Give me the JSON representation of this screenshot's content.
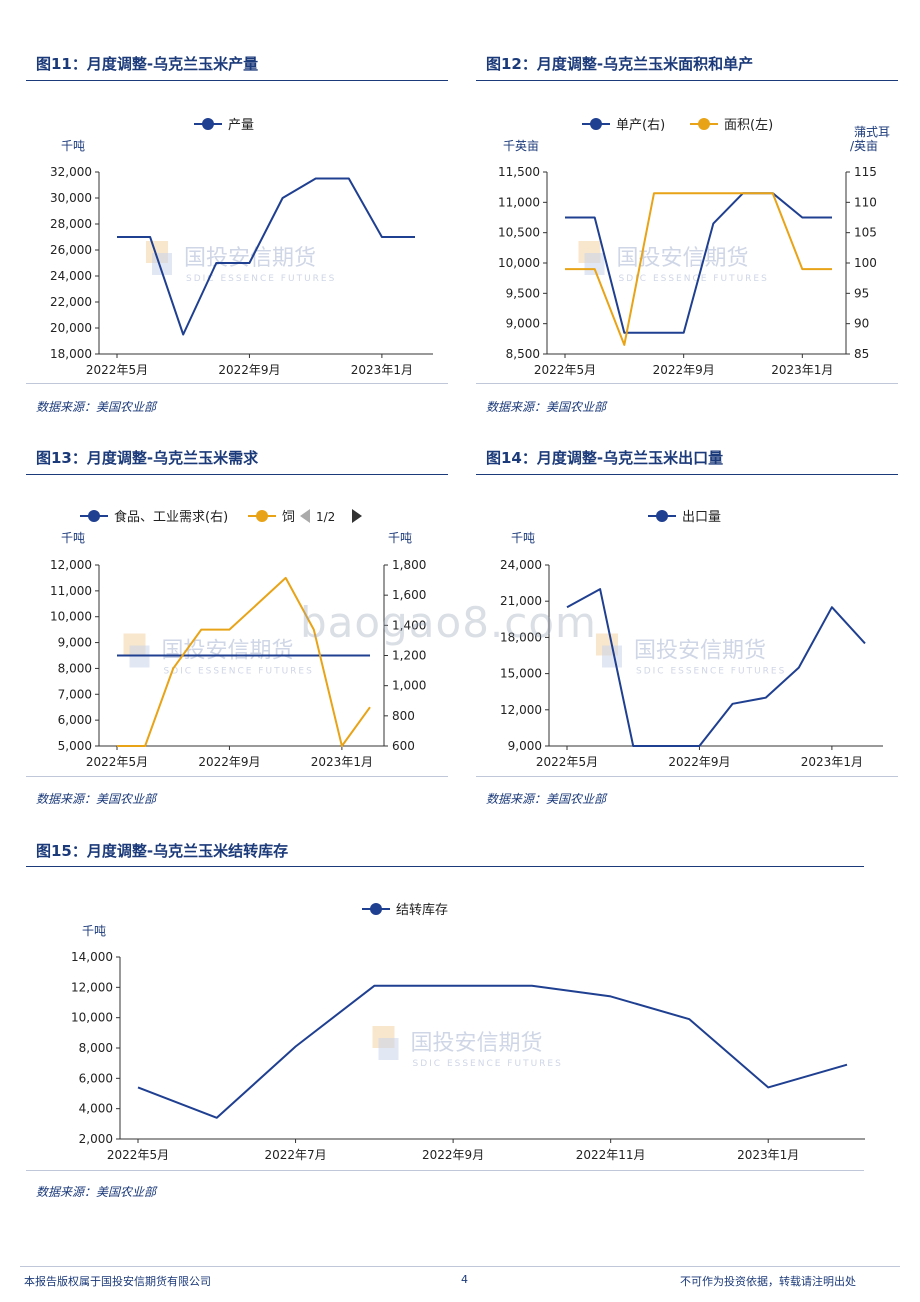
{
  "figures": [
    {
      "title": "图11：月度调整-乌克兰玉米产量",
      "source": "数据来源：美国农业部",
      "chart_data": {
        "type": "line",
        "x": [
          "2022年5月",
          "2022年6月",
          "2022年7月",
          "2022年8月",
          "2022年9月",
          "2022年10月",
          "2022年11月",
          "2022年12月",
          "2023年1月",
          "2023年2月"
        ],
        "x_tick_labels": [
          "2022年5月",
          "2022年9月",
          "2023年1月"
        ],
        "left_unit": "千吨",
        "left_ylim": [
          18000,
          32000
        ],
        "left_ticks": [
          "18,000",
          "20,000",
          "22,000",
          "24,000",
          "26,000",
          "28,000",
          "30,000",
          "32,000"
        ],
        "legend_entries": [
          "产量"
        ],
        "series": [
          {
            "name": "产量",
            "axis": "left",
            "color": "#1f3f91",
            "values": [
              27000,
              27000,
              19500,
              25000,
              25000,
              30000,
              31500,
              31500,
              27000,
              27000
            ]
          }
        ]
      }
    },
    {
      "title": "图12：月度调整-乌克兰玉米面积和单产",
      "source": "数据来源：美国农业部",
      "chart_data": {
        "type": "line",
        "x": [
          "2022年5月",
          "2022年6月",
          "2022年7月",
          "2022年8月",
          "2022年9月",
          "2022年10月",
          "2022年11月",
          "2022年12月",
          "2023年1月",
          "2023年2月"
        ],
        "x_tick_labels": [
          "2022年5月",
          "2022年9月",
          "2023年1月"
        ],
        "left_unit": "千英亩",
        "right_unit_1": "蒲式耳",
        "right_unit_2": "/英亩",
        "left_ylim": [
          8500,
          11500
        ],
        "left_ticks": [
          "8,500",
          "9,000",
          "9,500",
          "10,000",
          "10,500",
          "11,000",
          "11,500"
        ],
        "right_ylim": [
          85,
          115
        ],
        "right_ticks": [
          "85",
          "90",
          "95",
          "100",
          "105",
          "110",
          "115"
        ],
        "legend_entries": [
          "单产(右)",
          "面积(左)"
        ],
        "series": [
          {
            "name": "单产(右)",
            "axis": "right",
            "color": "#1f3f91",
            "values": [
              107.5,
              107.5,
              88.5,
              88.5,
              88.5,
              106.5,
              111.5,
              111.5,
              107.5,
              107.5
            ]
          },
          {
            "name": "面积(左)",
            "axis": "left",
            "color": "#e8a317",
            "values": [
              9900,
              9900,
              8650,
              11150,
              11150,
              11150,
              11150,
              11150,
              9900,
              9900
            ]
          }
        ]
      }
    },
    {
      "title": "图13：月度调整-乌克兰玉米需求",
      "source": "数据来源：美国农业部",
      "chart_data": {
        "type": "line",
        "x": [
          "2022年5月",
          "2022年6月",
          "2022年7月",
          "2022年8月",
          "2022年9月",
          "2022年10月",
          "2022年11月",
          "2022年12月",
          "2023年1月",
          "2023年2月"
        ],
        "x_tick_labels": [
          "2022年5月",
          "2022年9月",
          "2023年1月"
        ],
        "left_unit": "千吨",
        "right_unit": "千吨",
        "left_ylim": [
          5000,
          12000
        ],
        "left_ticks": [
          "5,000",
          "6,000",
          "7,000",
          "8,000",
          "9,000",
          "10,000",
          "11,000",
          "12,000"
        ],
        "right_ylim": [
          600,
          1800
        ],
        "right_ticks": [
          "600",
          "800",
          "1,000",
          "1,200",
          "1,400",
          "1,600",
          "1,800"
        ],
        "legend_entries": [
          "食品、工业需求(右)",
          "饲"
        ],
        "legend_pager": "1/2",
        "series": [
          {
            "name": "食品、工业需求(右)",
            "axis": "right",
            "color": "#1f3f91",
            "values": [
              1200,
              1200,
              1200,
              1200,
              1200,
              1200,
              1200,
              1200,
              1200,
              1200
            ]
          },
          {
            "name": "饲",
            "axis": "left",
            "color": "#e8a317",
            "values": [
              5000,
              5000,
              8000,
              9500,
              9500,
              10500,
              11500,
              9500,
              5000,
              6500
            ]
          }
        ]
      }
    },
    {
      "title": "图14：月度调整-乌克兰玉米出口量",
      "source": "数据来源：美国农业部",
      "chart_data": {
        "type": "line",
        "x": [
          "2022年5月",
          "2022年6月",
          "2022年7月",
          "2022年8月",
          "2022年9月",
          "2022年10月",
          "2022年11月",
          "2022年12月",
          "2023年1月",
          "2023年2月"
        ],
        "x_tick_labels": [
          "2022年5月",
          "2022年9月",
          "2023年1月"
        ],
        "left_unit": "千吨",
        "left_ylim": [
          9000,
          24000
        ],
        "left_ticks": [
          "9,000",
          "12,000",
          "15,000",
          "18,000",
          "21,000",
          "24,000"
        ],
        "legend_entries": [
          "出口量"
        ],
        "series": [
          {
            "name": "出口量",
            "axis": "left",
            "color": "#1f3f91",
            "values": [
              20500,
              22000,
              9000,
              9000,
              9000,
              12500,
              13000,
              15500,
              20500,
              17500
            ]
          }
        ]
      }
    },
    {
      "title": "图15：月度调整-乌克兰玉米结转库存",
      "source": "数据来源：美国农业部",
      "chart_data": {
        "type": "line",
        "x": [
          "2022年5月",
          "2022年6月",
          "2022年7月",
          "2022年8月",
          "2022年9月",
          "2022年10月",
          "2022年11月",
          "2022年12月",
          "2023年1月",
          "2023年2月"
        ],
        "x_tick_labels": [
          "2022年5月",
          "2022年7月",
          "2022年9月",
          "2022年11月",
          "2023年1月"
        ],
        "left_unit": "千吨",
        "left_ylim": [
          2000,
          14000
        ],
        "left_ticks": [
          "2,000",
          "4,000",
          "6,000",
          "8,000",
          "10,000",
          "12,000",
          "14,000"
        ],
        "legend_entries": [
          "结转库存"
        ],
        "series": [
          {
            "name": "结转库存",
            "axis": "left",
            "color": "#1f3f91",
            "values": [
              5400,
              3400,
              8100,
              12100,
              12100,
              12100,
              11400,
              9900,
              5400,
              6900
            ]
          }
        ]
      }
    }
  ],
  "watermark": {
    "cn": "国投安信期货",
    "en": "SDIC ESSENCE FUTURES",
    "site": "baogao8.com"
  },
  "footer": {
    "left": "本报告版权属于国投安信期货有限公司",
    "page": "4",
    "right": "不可作为投资依据，转载请注明出处"
  }
}
